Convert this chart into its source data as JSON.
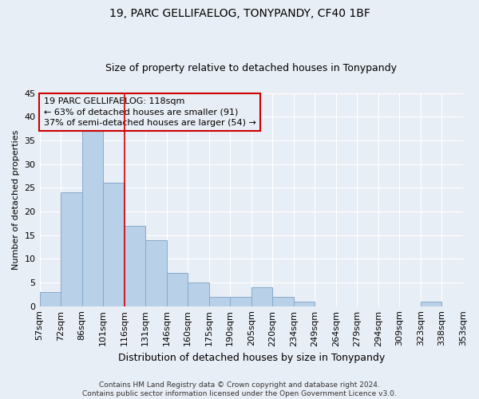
{
  "title": "19, PARC GELLIFAELOG, TONYPANDY, CF40 1BF",
  "subtitle": "Size of property relative to detached houses in Tonypandy",
  "xlabel": "Distribution of detached houses by size in Tonypandy",
  "ylabel": "Number of detached properties",
  "bar_values": [
    3,
    24,
    37,
    26,
    17,
    14,
    7,
    5,
    2,
    2,
    4,
    2,
    1,
    0,
    0,
    0,
    0,
    0,
    1,
    0
  ],
  "n_bins": 20,
  "categories": [
    "57sqm",
    "72sqm",
    "86sqm",
    "101sqm",
    "116sqm",
    "131sqm",
    "146sqm",
    "160sqm",
    "175sqm",
    "190sqm",
    "205sqm",
    "220sqm",
    "234sqm",
    "249sqm",
    "264sqm",
    "279sqm",
    "294sqm",
    "309sqm",
    "323sqm",
    "338sqm",
    "353sqm"
  ],
  "bar_color": "#b8d0e8",
  "bar_edge_color": "#88aacc",
  "vline_x_index": 4,
  "vline_color": "#cc0000",
  "ylim": [
    0,
    45
  ],
  "yticks": [
    0,
    5,
    10,
    15,
    20,
    25,
    30,
    35,
    40,
    45
  ],
  "annotation_lines": [
    "19 PARC GELLIFAELOG: 118sqm",
    "← 63% of detached houses are smaller (91)",
    "37% of semi-detached houses are larger (54) →"
  ],
  "annotation_box_color": "#cc0000",
  "footer_line1": "Contains HM Land Registry data © Crown copyright and database right 2024.",
  "footer_line2": "Contains public sector information licensed under the Open Government Licence v3.0.",
  "bg_color": "#e8eef5",
  "grid_color": "#ffffff",
  "title_fontsize": 10,
  "subtitle_fontsize": 9,
  "ylabel_fontsize": 8,
  "xlabel_fontsize": 9,
  "tick_fontsize": 8,
  "annotation_fontsize": 8,
  "footer_fontsize": 6.5
}
